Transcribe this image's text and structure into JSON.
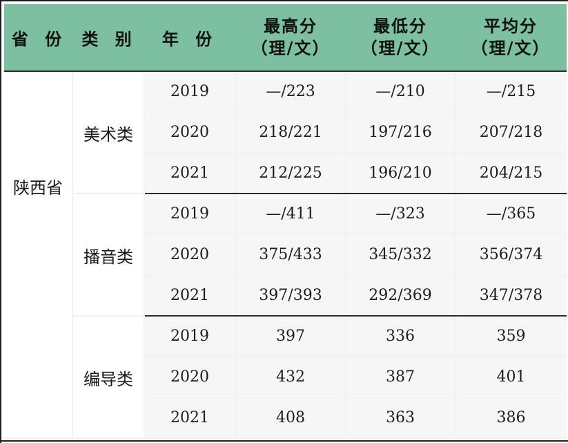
{
  "table": {
    "headers": {
      "province": "省 份",
      "category": "类 别",
      "year": "年 份",
      "max_line1": "最高分",
      "max_line2": "（理/文）",
      "min_line1": "最低分",
      "min_line2": "（理/文）",
      "avg_line1": "平均分",
      "avg_line2": "（理/文）"
    },
    "province": "陕西省",
    "groups": [
      {
        "category": "美术类",
        "rows": [
          {
            "year": "2019",
            "max": "—/223",
            "min": "—/210",
            "avg": "—/215"
          },
          {
            "year": "2020",
            "max": "218/221",
            "min": "197/216",
            "avg": "207/218"
          },
          {
            "year": "2021",
            "max": "212/225",
            "min": "196/210",
            "avg": "204/215"
          }
        ]
      },
      {
        "category": "播音类",
        "rows": [
          {
            "year": "2019",
            "max": "—/411",
            "min": "—/323",
            "avg": "—/365"
          },
          {
            "year": "2020",
            "max": "375/433",
            "min": "345/332",
            "avg": "356/374"
          },
          {
            "year": "2021",
            "max": "397/393",
            "min": "292/369",
            "avg": "347/378"
          }
        ]
      },
      {
        "category": "编导类",
        "rows": [
          {
            "year": "2019",
            "max": "397",
            "min": "336",
            "avg": "359"
          },
          {
            "year": "2020",
            "max": "432",
            "min": "387",
            "avg": "401"
          },
          {
            "year": "2021",
            "max": "408",
            "min": "363",
            "avg": "386"
          }
        ]
      }
    ]
  }
}
